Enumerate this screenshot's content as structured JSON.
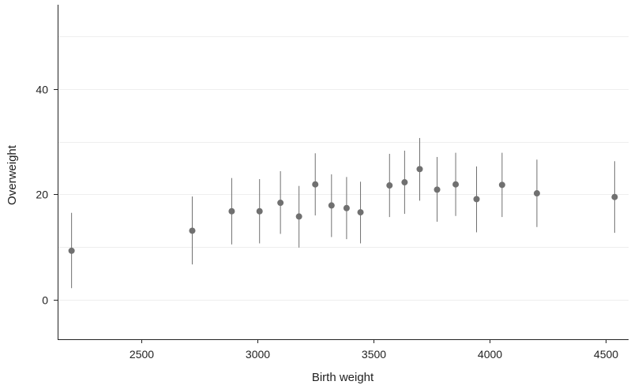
{
  "chart_data": {
    "type": "scatter",
    "title": "",
    "xlabel": "Birth weight",
    "ylabel": "Overweight",
    "xlim": [
      2140,
      4600
    ],
    "ylim": [
      -7.5,
      56
    ],
    "x_ticks": [
      2500,
      3000,
      3500,
      4000,
      4500
    ],
    "y_ticks": [
      0,
      20,
      40
    ],
    "grid_y": [
      0,
      10,
      20,
      30,
      40,
      50
    ],
    "grid": true,
    "error_bars": true,
    "colors": {
      "point": "#707070",
      "errorbar": "#707070",
      "grid": "#eeeeee",
      "axis": "#222222"
    },
    "points": [
      {
        "x": 2200,
        "y": 9.3,
        "low": 2.2,
        "high": 16.5
      },
      {
        "x": 2720,
        "y": 13.1,
        "low": 6.7,
        "high": 19.6
      },
      {
        "x": 2890,
        "y": 16.8,
        "low": 10.5,
        "high": 23.1
      },
      {
        "x": 3010,
        "y": 16.8,
        "low": 10.7,
        "high": 22.9
      },
      {
        "x": 3100,
        "y": 18.4,
        "low": 12.5,
        "high": 24.4
      },
      {
        "x": 3180,
        "y": 15.8,
        "low": 9.9,
        "high": 21.6
      },
      {
        "x": 3250,
        "y": 21.9,
        "low": 16.0,
        "high": 27.8
      },
      {
        "x": 3320,
        "y": 17.9,
        "low": 11.9,
        "high": 23.8
      },
      {
        "x": 3385,
        "y": 17.4,
        "low": 11.5,
        "high": 23.3
      },
      {
        "x": 3445,
        "y": 16.6,
        "low": 10.7,
        "high": 22.4
      },
      {
        "x": 3570,
        "y": 21.7,
        "low": 15.7,
        "high": 27.7
      },
      {
        "x": 3635,
        "y": 22.3,
        "low": 16.3,
        "high": 28.3
      },
      {
        "x": 3700,
        "y": 24.8,
        "low": 18.8,
        "high": 30.7
      },
      {
        "x": 3775,
        "y": 20.9,
        "low": 14.8,
        "high": 27.1
      },
      {
        "x": 3855,
        "y": 21.9,
        "low": 15.9,
        "high": 27.9
      },
      {
        "x": 3945,
        "y": 19.1,
        "low": 12.8,
        "high": 25.3
      },
      {
        "x": 4055,
        "y": 21.8,
        "low": 15.7,
        "high": 27.9
      },
      {
        "x": 4205,
        "y": 20.2,
        "low": 13.8,
        "high": 26.6
      },
      {
        "x": 4540,
        "y": 19.5,
        "low": 12.7,
        "high": 26.3
      }
    ]
  }
}
